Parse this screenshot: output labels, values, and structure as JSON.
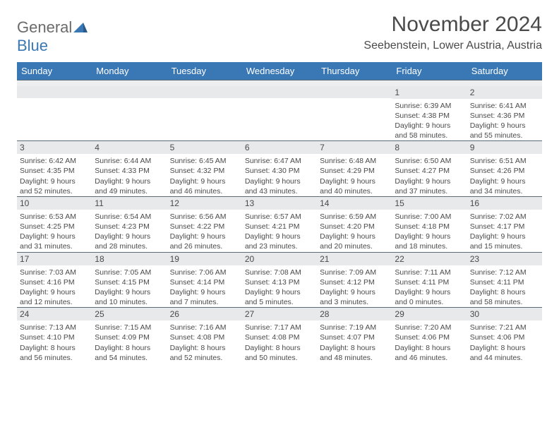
{
  "logo": {
    "word1": "General",
    "word2": "Blue"
  },
  "title": "November 2024",
  "location": "Seebenstein, Lower Austria, Austria",
  "colors": {
    "header_bg": "#3a78b5",
    "header_text": "#ffffff",
    "daynum_bg": "#e7e9ea",
    "text": "#4a4a4a",
    "rule": "#5b6b78",
    "logo_gray": "#6b6b6b",
    "logo_blue": "#3a78b5"
  },
  "weekdays": [
    "Sunday",
    "Monday",
    "Tuesday",
    "Wednesday",
    "Thursday",
    "Friday",
    "Saturday"
  ],
  "weeks": [
    [
      {
        "day": "",
        "sunrise": "",
        "sunset": "",
        "daylight": ""
      },
      {
        "day": "",
        "sunrise": "",
        "sunset": "",
        "daylight": ""
      },
      {
        "day": "",
        "sunrise": "",
        "sunset": "",
        "daylight": ""
      },
      {
        "day": "",
        "sunrise": "",
        "sunset": "",
        "daylight": ""
      },
      {
        "day": "",
        "sunrise": "",
        "sunset": "",
        "daylight": ""
      },
      {
        "day": "1",
        "sunrise": "Sunrise: 6:39 AM",
        "sunset": "Sunset: 4:38 PM",
        "daylight": "Daylight: 9 hours and 58 minutes."
      },
      {
        "day": "2",
        "sunrise": "Sunrise: 6:41 AM",
        "sunset": "Sunset: 4:36 PM",
        "daylight": "Daylight: 9 hours and 55 minutes."
      }
    ],
    [
      {
        "day": "3",
        "sunrise": "Sunrise: 6:42 AM",
        "sunset": "Sunset: 4:35 PM",
        "daylight": "Daylight: 9 hours and 52 minutes."
      },
      {
        "day": "4",
        "sunrise": "Sunrise: 6:44 AM",
        "sunset": "Sunset: 4:33 PM",
        "daylight": "Daylight: 9 hours and 49 minutes."
      },
      {
        "day": "5",
        "sunrise": "Sunrise: 6:45 AM",
        "sunset": "Sunset: 4:32 PM",
        "daylight": "Daylight: 9 hours and 46 minutes."
      },
      {
        "day": "6",
        "sunrise": "Sunrise: 6:47 AM",
        "sunset": "Sunset: 4:30 PM",
        "daylight": "Daylight: 9 hours and 43 minutes."
      },
      {
        "day": "7",
        "sunrise": "Sunrise: 6:48 AM",
        "sunset": "Sunset: 4:29 PM",
        "daylight": "Daylight: 9 hours and 40 minutes."
      },
      {
        "day": "8",
        "sunrise": "Sunrise: 6:50 AM",
        "sunset": "Sunset: 4:27 PM",
        "daylight": "Daylight: 9 hours and 37 minutes."
      },
      {
        "day": "9",
        "sunrise": "Sunrise: 6:51 AM",
        "sunset": "Sunset: 4:26 PM",
        "daylight": "Daylight: 9 hours and 34 minutes."
      }
    ],
    [
      {
        "day": "10",
        "sunrise": "Sunrise: 6:53 AM",
        "sunset": "Sunset: 4:25 PM",
        "daylight": "Daylight: 9 hours and 31 minutes."
      },
      {
        "day": "11",
        "sunrise": "Sunrise: 6:54 AM",
        "sunset": "Sunset: 4:23 PM",
        "daylight": "Daylight: 9 hours and 28 minutes."
      },
      {
        "day": "12",
        "sunrise": "Sunrise: 6:56 AM",
        "sunset": "Sunset: 4:22 PM",
        "daylight": "Daylight: 9 hours and 26 minutes."
      },
      {
        "day": "13",
        "sunrise": "Sunrise: 6:57 AM",
        "sunset": "Sunset: 4:21 PM",
        "daylight": "Daylight: 9 hours and 23 minutes."
      },
      {
        "day": "14",
        "sunrise": "Sunrise: 6:59 AM",
        "sunset": "Sunset: 4:20 PM",
        "daylight": "Daylight: 9 hours and 20 minutes."
      },
      {
        "day": "15",
        "sunrise": "Sunrise: 7:00 AM",
        "sunset": "Sunset: 4:18 PM",
        "daylight": "Daylight: 9 hours and 18 minutes."
      },
      {
        "day": "16",
        "sunrise": "Sunrise: 7:02 AM",
        "sunset": "Sunset: 4:17 PM",
        "daylight": "Daylight: 9 hours and 15 minutes."
      }
    ],
    [
      {
        "day": "17",
        "sunrise": "Sunrise: 7:03 AM",
        "sunset": "Sunset: 4:16 PM",
        "daylight": "Daylight: 9 hours and 12 minutes."
      },
      {
        "day": "18",
        "sunrise": "Sunrise: 7:05 AM",
        "sunset": "Sunset: 4:15 PM",
        "daylight": "Daylight: 9 hours and 10 minutes."
      },
      {
        "day": "19",
        "sunrise": "Sunrise: 7:06 AM",
        "sunset": "Sunset: 4:14 PM",
        "daylight": "Daylight: 9 hours and 7 minutes."
      },
      {
        "day": "20",
        "sunrise": "Sunrise: 7:08 AM",
        "sunset": "Sunset: 4:13 PM",
        "daylight": "Daylight: 9 hours and 5 minutes."
      },
      {
        "day": "21",
        "sunrise": "Sunrise: 7:09 AM",
        "sunset": "Sunset: 4:12 PM",
        "daylight": "Daylight: 9 hours and 3 minutes."
      },
      {
        "day": "22",
        "sunrise": "Sunrise: 7:11 AM",
        "sunset": "Sunset: 4:11 PM",
        "daylight": "Daylight: 9 hours and 0 minutes."
      },
      {
        "day": "23",
        "sunrise": "Sunrise: 7:12 AM",
        "sunset": "Sunset: 4:11 PM",
        "daylight": "Daylight: 8 hours and 58 minutes."
      }
    ],
    [
      {
        "day": "24",
        "sunrise": "Sunrise: 7:13 AM",
        "sunset": "Sunset: 4:10 PM",
        "daylight": "Daylight: 8 hours and 56 minutes."
      },
      {
        "day": "25",
        "sunrise": "Sunrise: 7:15 AM",
        "sunset": "Sunset: 4:09 PM",
        "daylight": "Daylight: 8 hours and 54 minutes."
      },
      {
        "day": "26",
        "sunrise": "Sunrise: 7:16 AM",
        "sunset": "Sunset: 4:08 PM",
        "daylight": "Daylight: 8 hours and 52 minutes."
      },
      {
        "day": "27",
        "sunrise": "Sunrise: 7:17 AM",
        "sunset": "Sunset: 4:08 PM",
        "daylight": "Daylight: 8 hours and 50 minutes."
      },
      {
        "day": "28",
        "sunrise": "Sunrise: 7:19 AM",
        "sunset": "Sunset: 4:07 PM",
        "daylight": "Daylight: 8 hours and 48 minutes."
      },
      {
        "day": "29",
        "sunrise": "Sunrise: 7:20 AM",
        "sunset": "Sunset: 4:06 PM",
        "daylight": "Daylight: 8 hours and 46 minutes."
      },
      {
        "day": "30",
        "sunrise": "Sunrise: 7:21 AM",
        "sunset": "Sunset: 4:06 PM",
        "daylight": "Daylight: 8 hours and 44 minutes."
      }
    ]
  ]
}
